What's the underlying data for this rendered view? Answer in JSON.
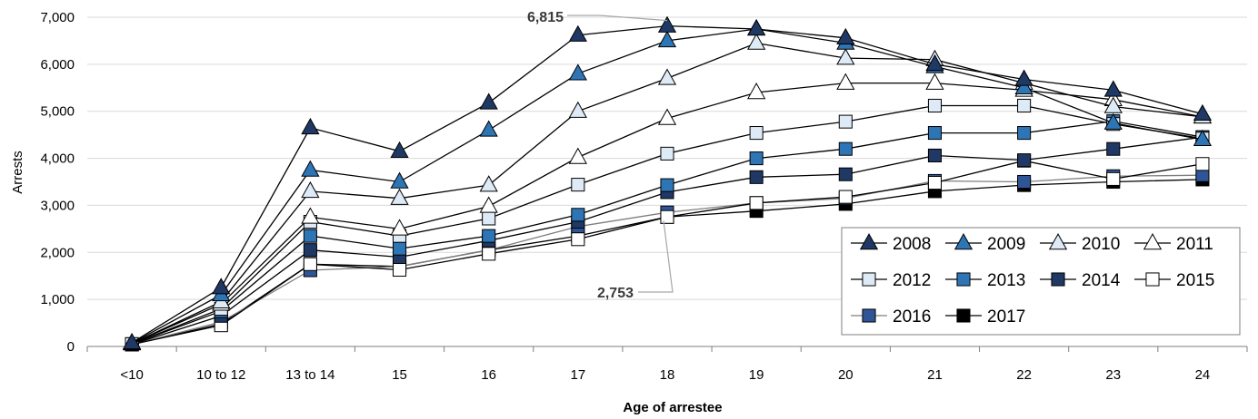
{
  "chart_data": {
    "type": "line",
    "title": "",
    "xlabel": "Age of arrestee",
    "ylabel": "Arrests",
    "ylim": [
      0,
      7000
    ],
    "yticks": [
      "0",
      "1,000",
      "2,000",
      "3,000",
      "4,000",
      "5,000",
      "6,000",
      "7,000"
    ],
    "categories": [
      "<10",
      "10 to 12",
      "13 to 14",
      "15",
      "16",
      "17",
      "18",
      "19",
      "20",
      "21",
      "22",
      "23",
      "24"
    ],
    "grid": "horizontal",
    "legend_position": "bottom-right",
    "series": [
      {
        "name": "2008",
        "marker": "triangle",
        "fill": "#1f3864",
        "line": "#000000",
        "values": [
          80,
          1250,
          4650,
          4150,
          5180,
          6620,
          6815,
          6750,
          6560,
          6000,
          5680,
          5450,
          4940
        ]
      },
      {
        "name": "2009",
        "marker": "triangle",
        "fill": "#2e75b6",
        "line": "#000000",
        "values": [
          70,
          1100,
          3750,
          3500,
          4600,
          5800,
          6500,
          6750,
          6450,
          5950,
          5500,
          4750,
          4400
        ]
      },
      {
        "name": "2010",
        "marker": "triangle",
        "fill": "#deebf7",
        "line": "#000000",
        "values": [
          60,
          950,
          3300,
          3150,
          3430,
          5000,
          5700,
          6450,
          6130,
          6100,
          5600,
          5100,
          4880
        ]
      },
      {
        "name": "2011",
        "marker": "triangle",
        "fill": "#ffffff",
        "line": "#000000",
        "values": [
          60,
          900,
          2750,
          2500,
          2980,
          4020,
          4850,
          5400,
          5600,
          5600,
          5450,
          5250,
          4880
        ]
      },
      {
        "name": "2012",
        "marker": "square",
        "fill": "#deebf7",
        "line": "#000000",
        "values": [
          50,
          800,
          2650,
          2350,
          2720,
          3440,
          4100,
          4540,
          4780,
          5120,
          5120,
          4730,
          4420
        ]
      },
      {
        "name": "2013",
        "marker": "square",
        "fill": "#2e75b6",
        "line": "#000000",
        "values": [
          50,
          750,
          2350,
          2080,
          2350,
          2800,
          3430,
          4000,
          4200,
          4540,
          4540,
          4790,
          4450
        ]
      },
      {
        "name": "2014",
        "marker": "square",
        "fill": "#1f3864",
        "line": "#000000",
        "values": [
          45,
          650,
          2050,
          1900,
          2250,
          2650,
          3280,
          3600,
          3660,
          4060,
          3960,
          4200,
          4450
        ]
      },
      {
        "name": "2015",
        "marker": "square",
        "fill": "#ffffff",
        "line": "#000000",
        "values": [
          45,
          450,
          1750,
          1630,
          1970,
          2280,
          2753,
          3050,
          3180,
          3480,
          3950,
          3560,
          3880
        ]
      },
      {
        "name": "2016",
        "marker": "square",
        "fill": "#2f5597",
        "line": "#7f7f7f",
        "values": [
          40,
          520,
          1620,
          1700,
          2050,
          2550,
          2850,
          3050,
          3150,
          3520,
          3500,
          3620,
          3640
        ]
      },
      {
        "name": "2017",
        "marker": "square",
        "fill": "#000000",
        "line": "#000000",
        "values": [
          40,
          480,
          1750,
          1700,
          2050,
          2350,
          2753,
          2880,
          3030,
          3300,
          3430,
          3500,
          3550
        ]
      }
    ],
    "annotations": [
      {
        "text": "6,815",
        "category": "18",
        "value": 6815
      },
      {
        "text": "2,753",
        "category": "18",
        "value": 2753
      }
    ]
  }
}
